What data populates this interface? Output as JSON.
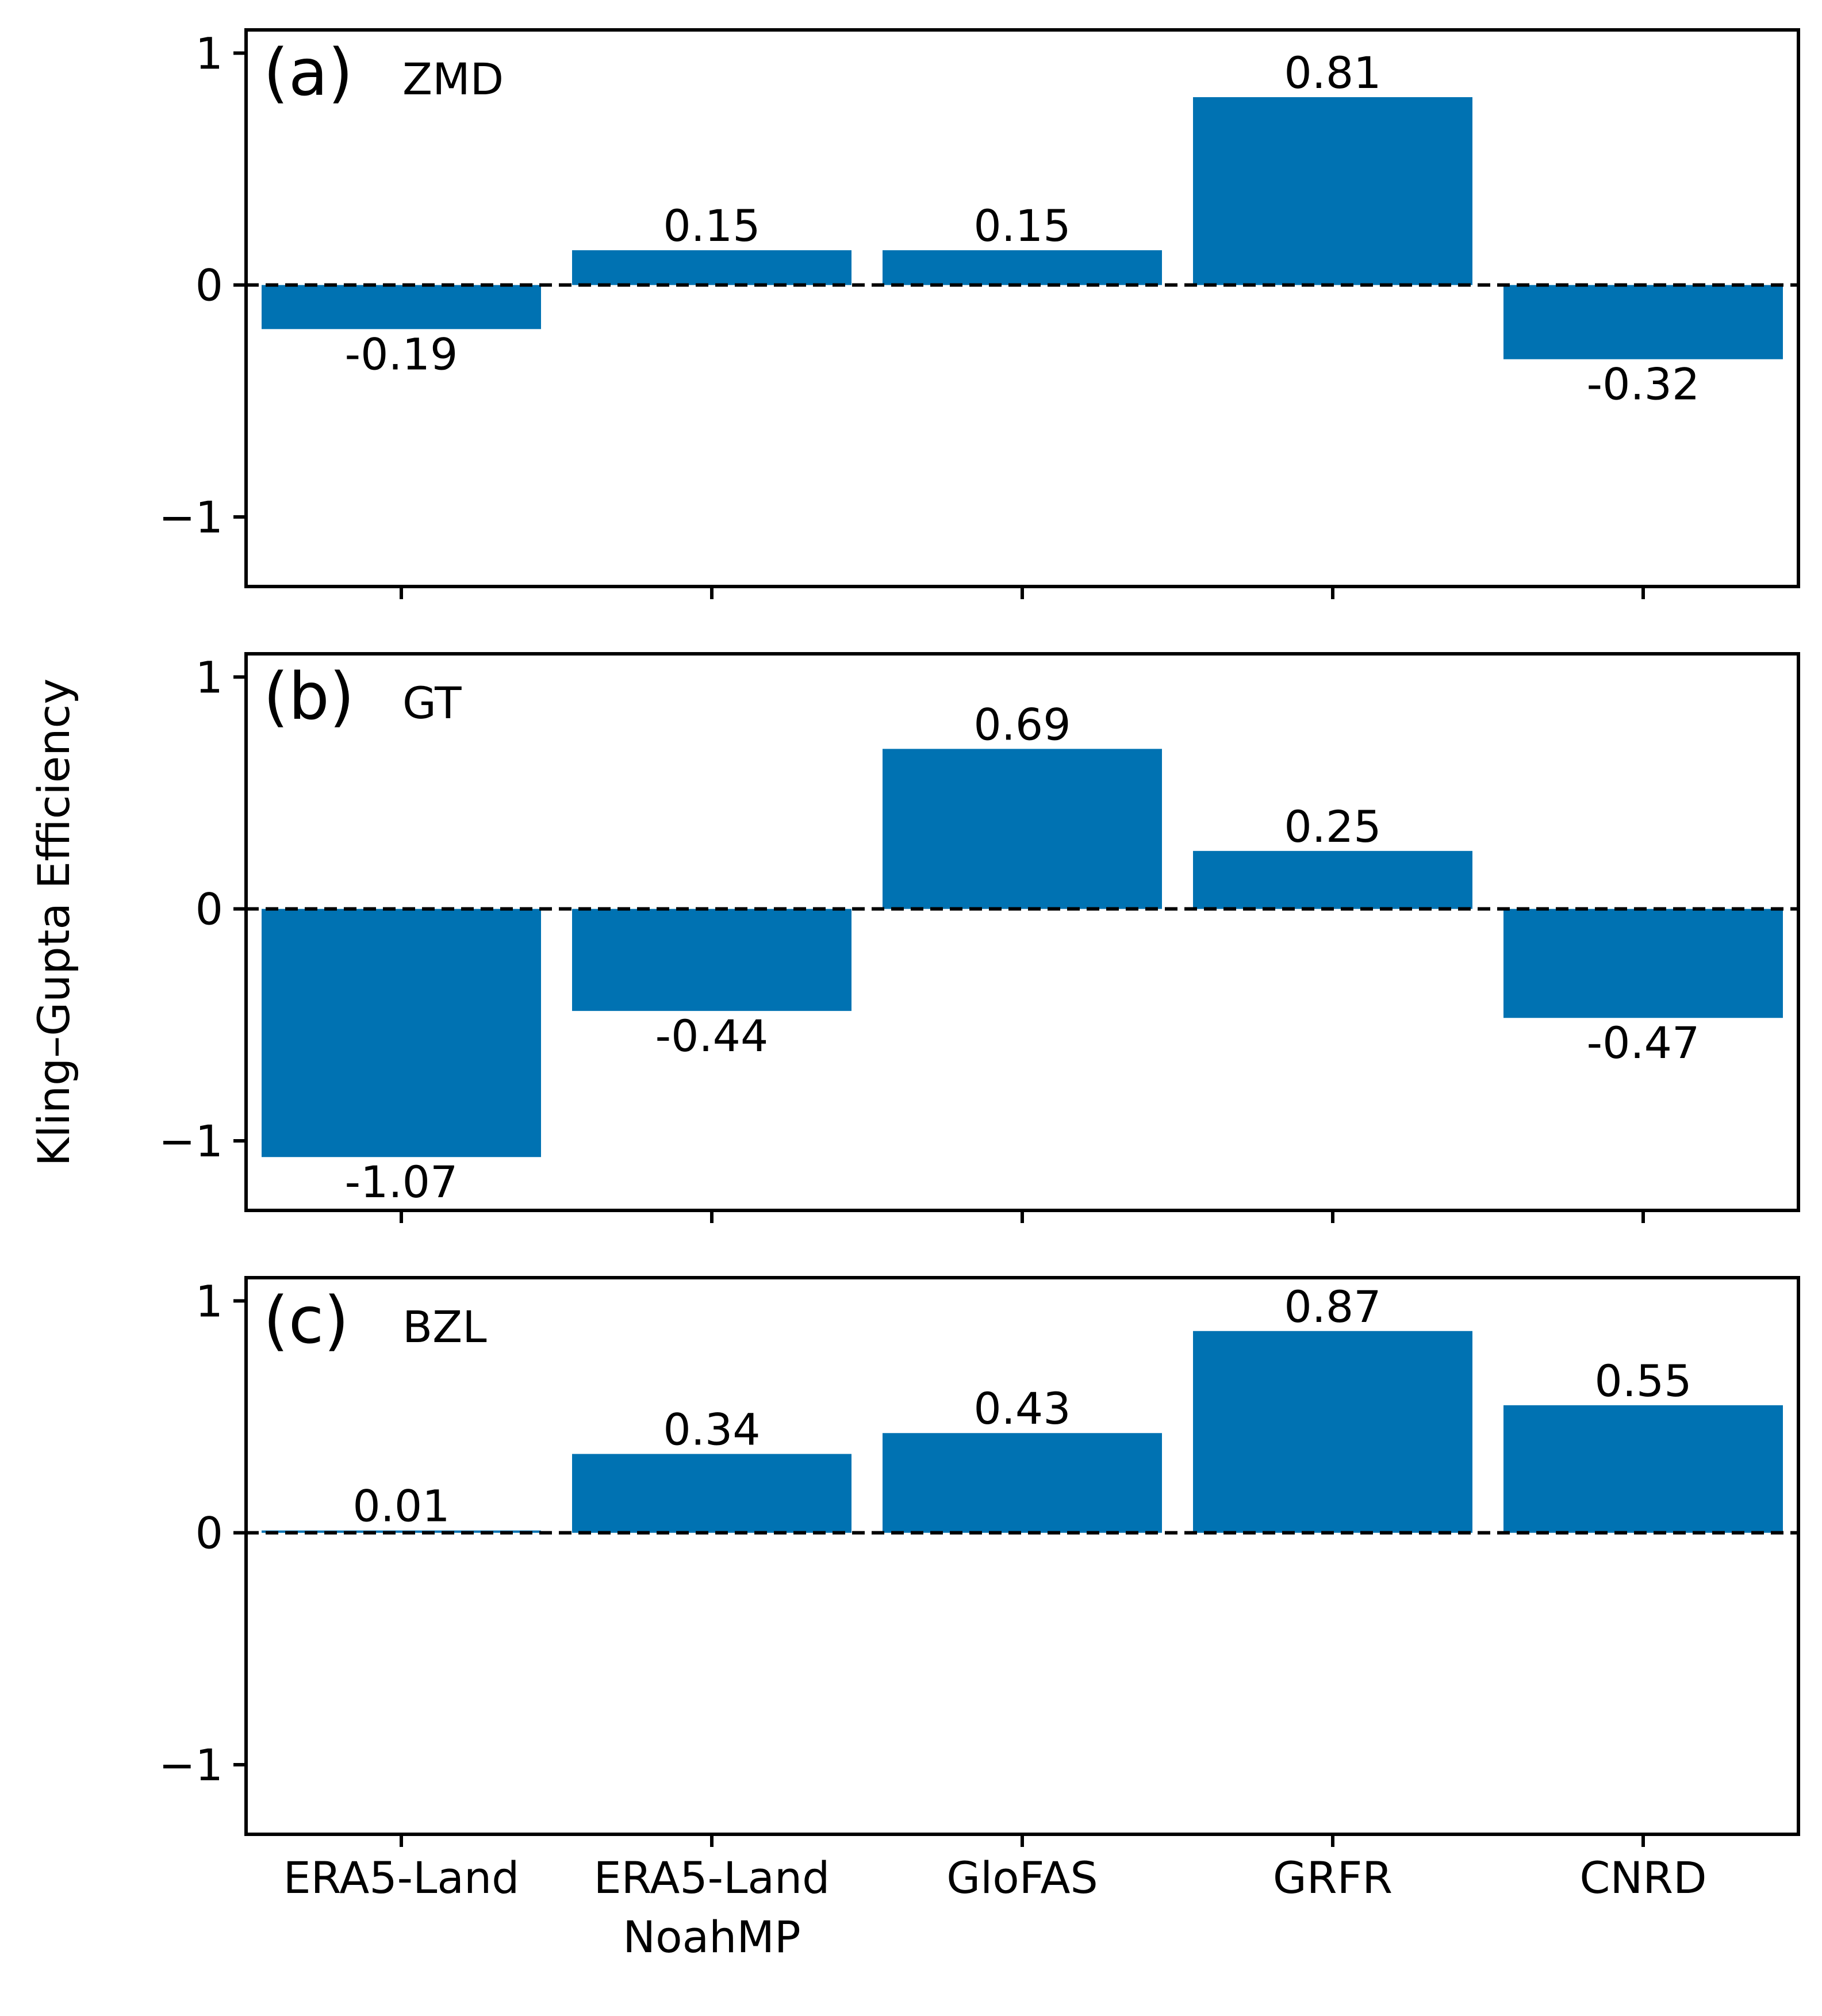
{
  "colors": {
    "bar": "#0072b2",
    "axis": "#000000",
    "zero_line": "#000000",
    "background": "#ffffff"
  },
  "chart_data": {
    "type": "bar",
    "ylabel": "Kling–Gupta Efficiency",
    "categories": [
      {
        "line1": "ERA5-Land",
        "line2": ""
      },
      {
        "line1": "ERA5-Land",
        "line2": "NoahMP"
      },
      {
        "line1": "GloFAS",
        "line2": ""
      },
      {
        "line1": "GRFR",
        "line2": ""
      },
      {
        "line1": "CNRD",
        "line2": ""
      }
    ],
    "ylim": [
      -1.3,
      1.1
    ],
    "yticks": [
      {
        "value": 1,
        "label": "1"
      },
      {
        "value": 0,
        "label": "0"
      },
      {
        "value": -1,
        "label": "−1"
      }
    ],
    "zero_line": "dashed",
    "panels": [
      {
        "letter": "(a)",
        "name": "ZMD",
        "values": [
          -0.19,
          0.15,
          0.15,
          0.81,
          -0.32
        ],
        "labels": [
          "-0.19",
          "0.15",
          "0.15",
          "0.81",
          "-0.32"
        ]
      },
      {
        "letter": "(b)",
        "name": "GT",
        "values": [
          -1.07,
          -0.44,
          0.69,
          0.25,
          -0.47
        ],
        "labels": [
          "-1.07",
          "-0.44",
          "0.69",
          "0.25",
          "-0.47"
        ]
      },
      {
        "letter": "(c)",
        "name": "BZL",
        "values": [
          0.01,
          0.34,
          0.43,
          0.87,
          0.55
        ],
        "labels": [
          "0.01",
          "0.34",
          "0.43",
          "0.87",
          "0.55"
        ]
      }
    ]
  }
}
